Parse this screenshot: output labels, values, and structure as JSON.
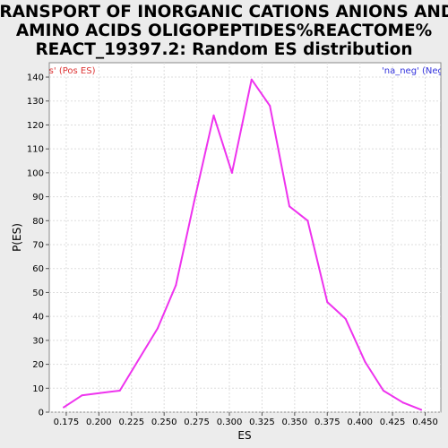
{
  "chart_data": {
    "type": "line",
    "title_lines": [
      "TRANSPORT OF INORGANIC CATIONS ANIONS AND",
      "AMINO ACIDS OLIGOPEPTIDES%REACTOME%",
      "REACT_19397.2: Random ES distribution"
    ],
    "xlabel": "ES",
    "ylabel": "P(ES)",
    "xlim": [
      0.162,
      0.462
    ],
    "ylim": [
      0,
      146
    ],
    "x_ticks": [
      "0.175",
      "0.200",
      "0.225",
      "0.250",
      "0.275",
      "0.300",
      "0.325",
      "0.350",
      "0.375",
      "0.400",
      "0.425",
      "0.450"
    ],
    "y_ticks": [
      "0",
      "10",
      "20",
      "30",
      "40",
      "50",
      "60",
      "70",
      "80",
      "90",
      "100",
      "110",
      "120",
      "130",
      "140"
    ],
    "grid": true,
    "legend": {
      "left": {
        "label": "'na_pos' (Pos ES)",
        "color": "#dd3333"
      },
      "right": {
        "label": "'na_neg' (Neg ES)",
        "color": "#3333dd"
      }
    },
    "series": [
      {
        "color": "#ee33ee",
        "x": [
          0.173,
          0.187,
          0.201,
          0.216,
          0.245,
          0.259,
          0.273,
          0.288,
          0.302,
          0.317,
          0.331,
          0.346,
          0.36,
          0.375,
          0.389,
          0.404,
          0.418,
          0.433,
          0.447
        ],
        "y": [
          2,
          7,
          8,
          9,
          35,
          53,
          88,
          124,
          100,
          139,
          128,
          86,
          80,
          46,
          39,
          21,
          9,
          4,
          1
        ]
      }
    ]
  }
}
